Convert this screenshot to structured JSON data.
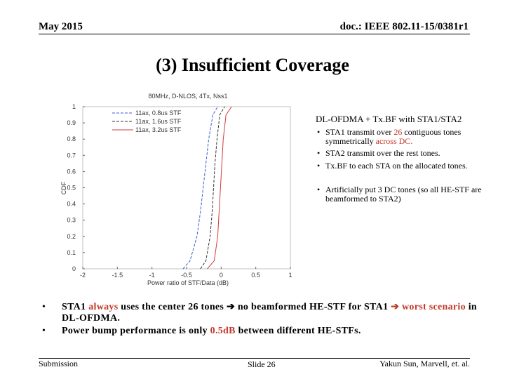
{
  "header": {
    "date": "May 2015",
    "doc": "doc.: IEEE 802.11-15/0381r1"
  },
  "title": "(3) Insufficient Coverage",
  "chart_data": {
    "type": "line",
    "title": "80MHz, D-NLOS, 4Tx, Nss1",
    "x_label": "Power ratio of STF/Data (dB)",
    "y_label": "CDF",
    "xlim": [
      -2,
      1
    ],
    "ylim": [
      0,
      1
    ],
    "xticks": [
      -2,
      -1.5,
      -1,
      -0.5,
      0,
      0.5,
      1
    ],
    "yticks": [
      0,
      0.1,
      0.2,
      0.3,
      0.4,
      0.5,
      0.6,
      0.7,
      0.8,
      0.9,
      1
    ],
    "legend": "upper left",
    "series": [
      {
        "name": "11ax, 0.8us STF",
        "color": "#3b5bd6",
        "dash": true,
        "x": [
          -0.55,
          -0.45,
          -0.35,
          -0.3,
          -0.26,
          -0.22,
          -0.18,
          -0.12,
          -0.05
        ],
        "values": [
          0,
          0.05,
          0.2,
          0.35,
          0.5,
          0.65,
          0.8,
          0.95,
          1
        ]
      },
      {
        "name": "11ax, 1.6us STF",
        "color": "#333333",
        "dash": true,
        "x": [
          -0.3,
          -0.22,
          -0.16,
          -0.13,
          -0.11,
          -0.09,
          -0.06,
          -0.02,
          0.05
        ],
        "values": [
          0,
          0.05,
          0.2,
          0.35,
          0.5,
          0.65,
          0.8,
          0.95,
          1
        ]
      },
      {
        "name": "11ax, 3.2us STF",
        "color": "#d23a3a",
        "dash": false,
        "x": [
          -0.2,
          -0.1,
          -0.05,
          -0.03,
          -0.01,
          0.01,
          0.03,
          0.07,
          0.15
        ],
        "values": [
          0,
          0.05,
          0.2,
          0.35,
          0.5,
          0.65,
          0.8,
          0.95,
          1
        ]
      }
    ]
  },
  "notes": {
    "heading": "DL-OFDMA + Tx.BF with STA1/STA2",
    "bullets": [
      [
        "STA1 transmit over ",
        "26",
        " contiguous tones symmetrically ",
        "across DC."
      ],
      [
        "STA2 transmit over the rest tones."
      ],
      [
        "Tx.BF to each STA on the allocated tones."
      ],
      [
        "Artificially put 3 DC tones (so all HE-STF are beamformed to STA2)"
      ]
    ]
  },
  "bullets": [
    [
      "STA1 ",
      "always",
      " uses the center 26 tones ",
      "➔",
      " no beamformed HE-STF for STA1 ",
      "➔",
      " worst scenario",
      " in DL-OFDMA."
    ],
    [
      "Power bump performance is only ",
      "0.5dB",
      " between different HE-STFs."
    ]
  ],
  "footer": {
    "left": "Submission",
    "center": "Slide 26",
    "right": "Yakun Sun,  Marvell, et. al."
  }
}
